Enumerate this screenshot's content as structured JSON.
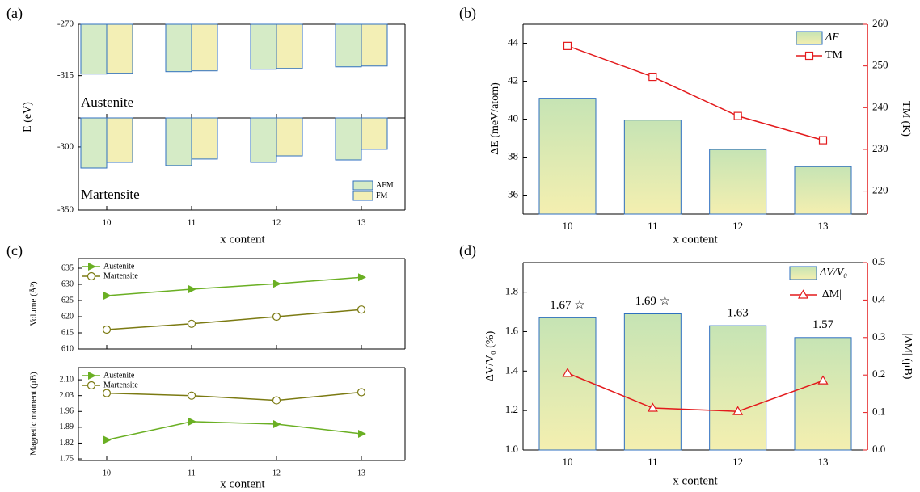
{
  "chart_data": [
    {
      "type": "bar",
      "label": "(a)",
      "ylabel": "E (eV)",
      "xlabel": "x content",
      "categories": [
        "10",
        "11",
        "12",
        "13"
      ],
      "edgecolor": "#2e6fc0",
      "subplots": [
        {
          "title": "Austenite",
          "ylim": [
            -352,
            -270
          ],
          "yticks": [
            -315,
            -270
          ],
          "series": [
            {
              "name": "AFM",
              "color": "#d5ebc6",
              "values": [
                -313.6,
                -311.5,
                -309.4,
                -307.3
              ]
            },
            {
              "name": "FM",
              "color": "#f3efb5",
              "values": [
                -312.9,
                -310.8,
                -308.7,
                -306.6
              ]
            }
          ]
        },
        {
          "title": "Martensite",
          "ylim": [
            -350,
            -277
          ],
          "yticks": [
            -350,
            -300
          ],
          "legend": "lower right",
          "series": [
            {
              "name": "AFM",
              "color": "#d5ebc6",
              "values": [
                -316.7,
                -314.7,
                -312.2,
                -310.3
              ]
            },
            {
              "name": "FM",
              "color": "#f3efb5",
              "values": [
                -312.2,
                -309.6,
                -307.1,
                -301.9
              ]
            }
          ]
        }
      ]
    },
    {
      "type": "bar",
      "label": "(b)",
      "ylabel": "ΔE (meV/atom)",
      "y2label": "TM (K)",
      "xlabel": "x content",
      "categories": [
        "10",
        "11",
        "12",
        "13"
      ],
      "edgecolor": "#2e6fc0",
      "ylim": [
        35,
        45
      ],
      "yticks": [
        36,
        38,
        40,
        42,
        44
      ],
      "y2lim": [
        214.5,
        260
      ],
      "y2ticks": [
        220,
        230,
        240,
        250,
        260
      ],
      "legend": "upper right",
      "series": [
        {
          "name": "ΔE",
          "type": "bar",
          "color": [
            "#c6e4b4",
            "#f4efb0"
          ],
          "values": [
            41.1,
            39.95,
            38.4,
            37.5
          ]
        },
        {
          "name": "TM",
          "type": "line",
          "axis": "y2",
          "color": "#e31a1c",
          "marker": "square",
          "values": [
            254.8,
            247.4,
            238.0,
            232.2
          ]
        }
      ]
    },
    {
      "type": "line",
      "label": "(c)",
      "xlabel": "x content",
      "categories": [
        "10",
        "11",
        "12",
        "13"
      ],
      "subplots": [
        {
          "ylabel": "Volume (Å³)",
          "ylim": [
            610,
            638
          ],
          "yticks": [
            610,
            615,
            620,
            625,
            630,
            635
          ],
          "legend": "upper left",
          "series": [
            {
              "name": "Austenite",
              "color": "#6aaf23",
              "marker": "triangle-right",
              "values": [
                626.5,
                628.5,
                630.2,
                632.2
              ]
            },
            {
              "name": "Martensite",
              "color": "#7b7a12",
              "marker": "circle",
              "values": [
                616.0,
                617.8,
                620.0,
                622.2
              ]
            }
          ]
        },
        {
          "ylabel": "Magnetic moment (μB)",
          "ylim": [
            1.743,
            2.154
          ],
          "yticks": [
            1.75,
            1.82,
            1.89,
            1.96,
            2.03,
            {
              "value": 2.1,
              "label": "2.10"
            }
          ],
          "legend": "upper left",
          "series": [
            {
              "name": "Austenite",
              "color": "#6aaf23",
              "marker": "triangle-right",
              "values": [
                1.834,
                1.915,
                1.904,
                1.861
              ]
            },
            {
              "name": "Martensite",
              "color": "#7b7a12",
              "marker": "circle",
              "values": [
                2.041,
                2.03,
                2.009,
                2.045
              ]
            }
          ]
        }
      ]
    },
    {
      "type": "bar",
      "label": "(d)",
      "ylabel": "ΔV/V₀ (%)",
      "y2label": "|ΔM| (μB)",
      "xlabel": "x content",
      "categories": [
        "10",
        "11",
        "12",
        "13"
      ],
      "edgecolor": "#2e6fc0",
      "ylim": [
        1.0,
        1.95
      ],
      "yticks": [
        {
          "value": 1,
          "label": "1.0"
        },
        1.2,
        1.4,
        1.6,
        1.8
      ],
      "y2lim": [
        0,
        0.5
      ],
      "y2ticks": [
        {
          "value": 0,
          "label": "0.0"
        },
        0.1,
        0.2,
        0.3,
        0.4,
        0.5
      ],
      "legend": "upper right",
      "series": [
        {
          "name": "ΔV/V₀",
          "type": "bar",
          "color": [
            "#c6e4b4",
            "#f4efb0"
          ],
          "values": [
            1.67,
            1.69,
            1.63,
            1.57
          ],
          "value_labels": [
            "1.67 ☆",
            "1.69 ☆",
            "1.63",
            "1.57"
          ]
        },
        {
          "name": "|ΔM|",
          "type": "line",
          "axis": "y2",
          "color": "#e31a1c",
          "marker": "triangle",
          "values": [
            0.205,
            0.112,
            0.103,
            0.185
          ]
        }
      ]
    }
  ]
}
